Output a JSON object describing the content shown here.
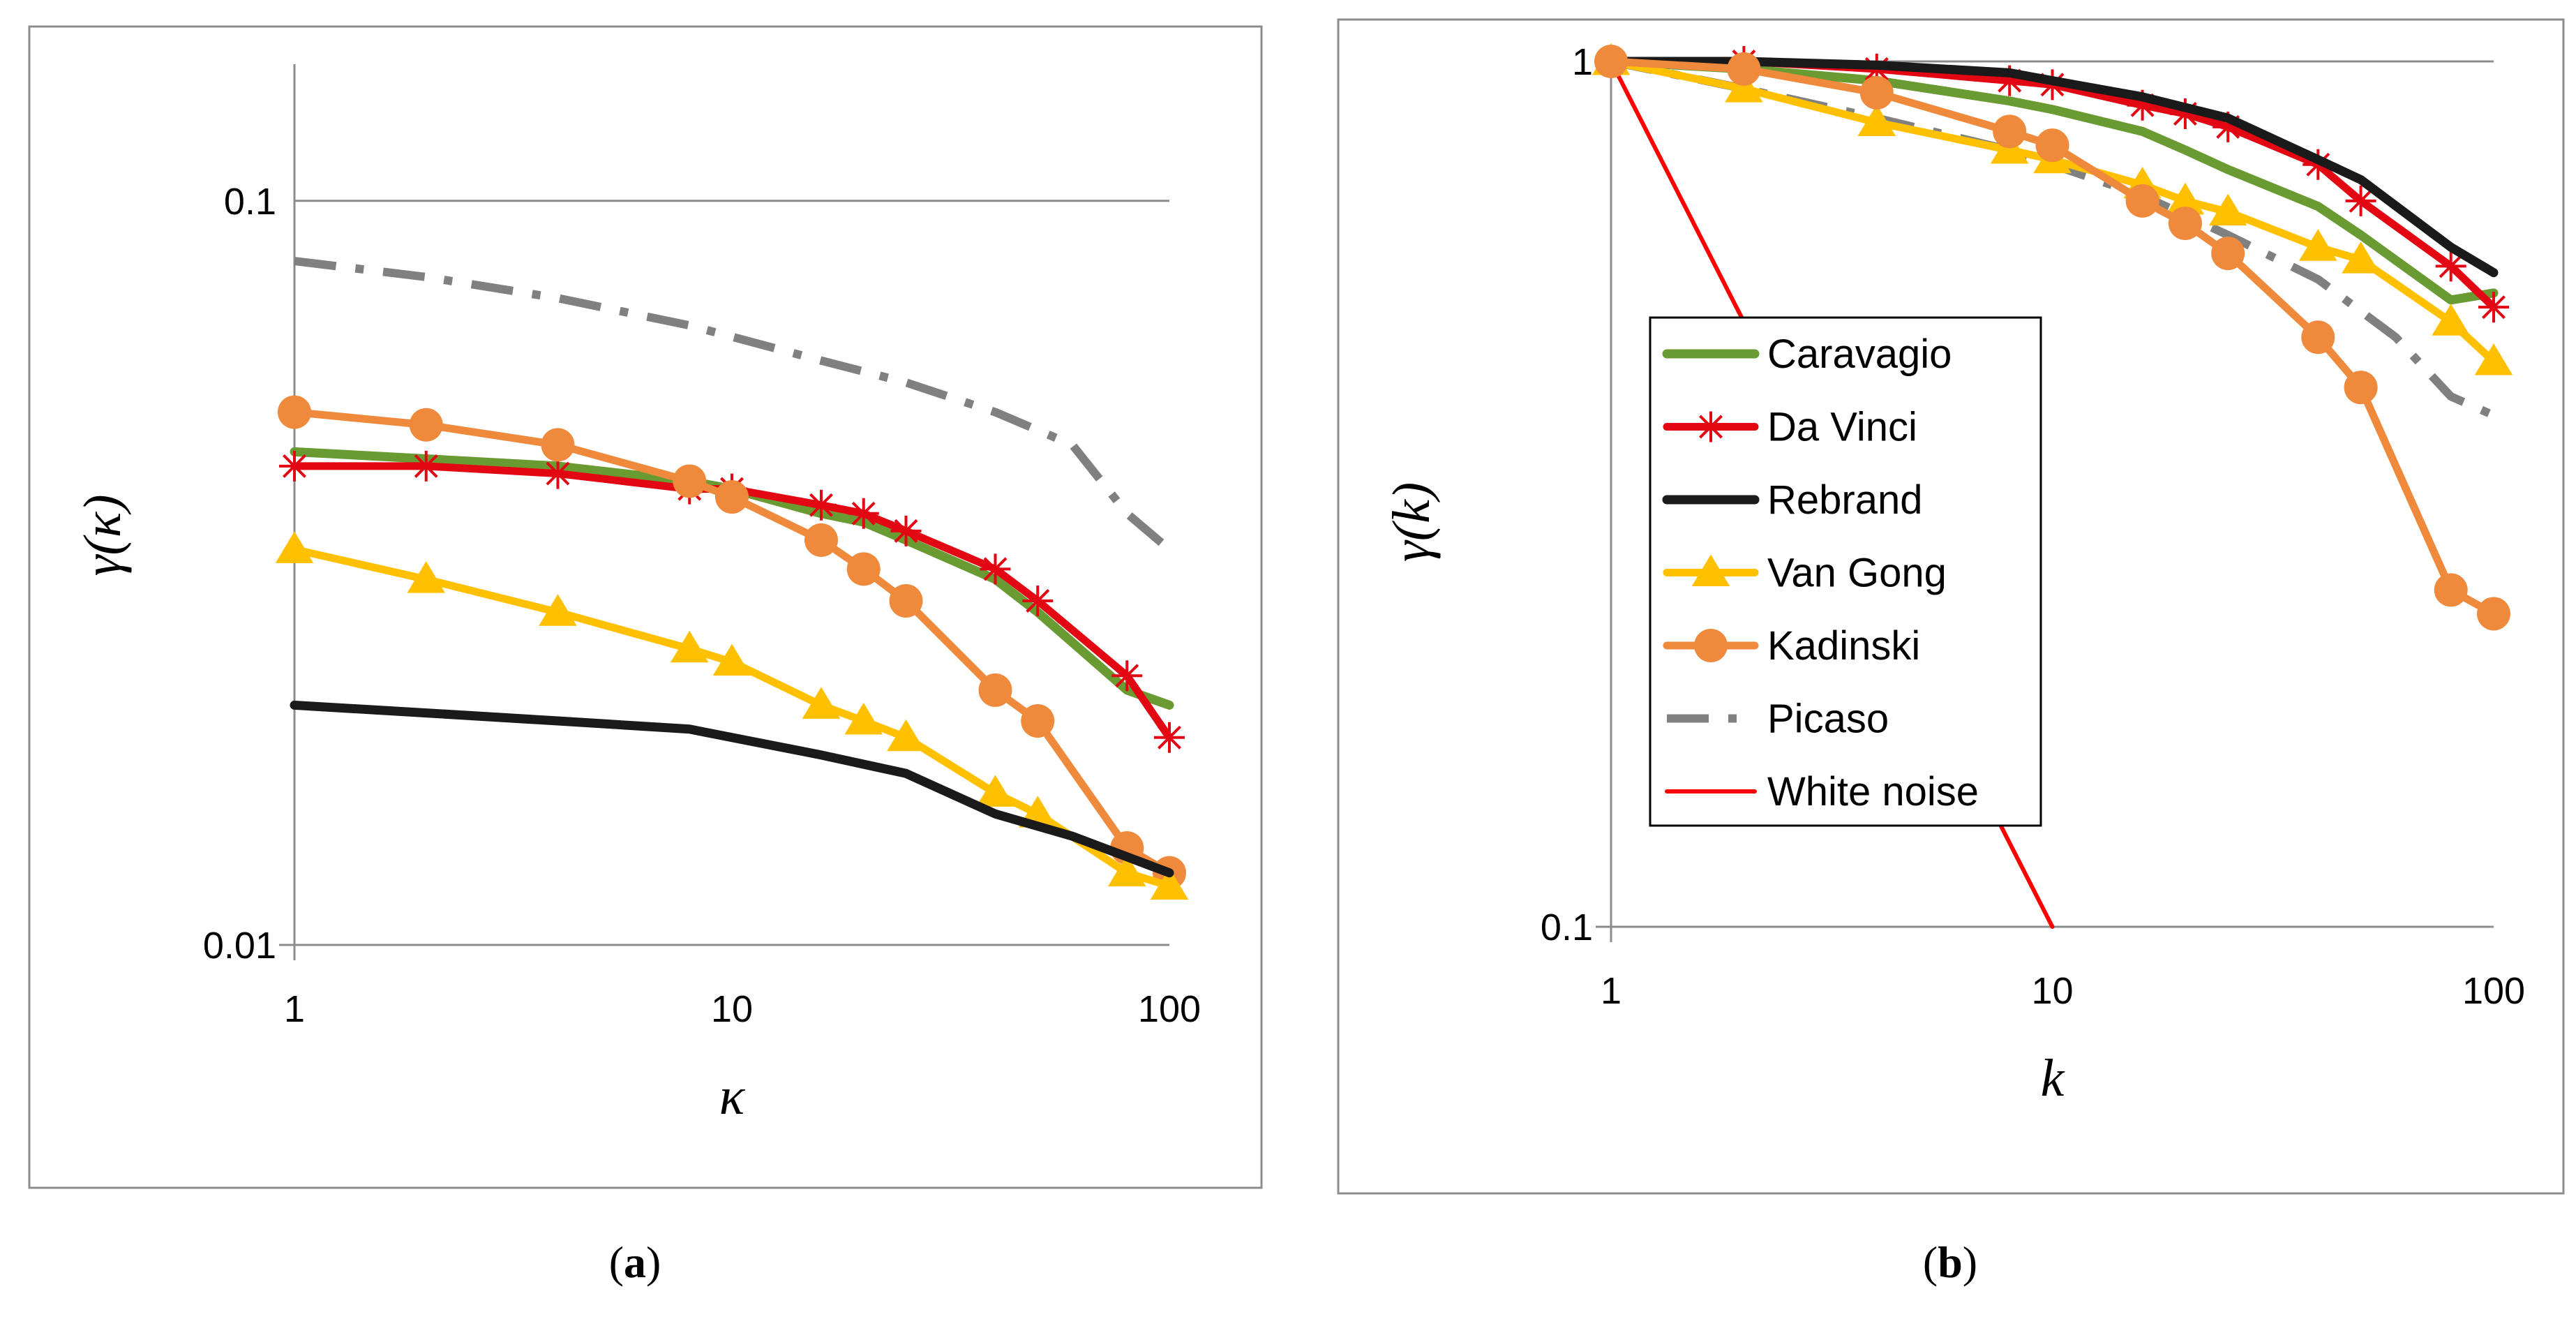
{
  "chart_data": [
    {
      "type": "line",
      "panel_label": "a",
      "xscale": "log",
      "yscale": "log",
      "xlim": [
        1,
        100
      ],
      "ylim": [
        0.01,
        0.15
      ],
      "xticks": [
        1,
        10,
        100
      ],
      "xtick_labels": [
        "1",
        "10",
        "100"
      ],
      "yticks": [
        0.01,
        0.1
      ],
      "ytick_labels": [
        "0.01",
        "0.1"
      ],
      "xlabel": "κ",
      "ylabel": "γ(κ)",
      "grid": "horizontal",
      "series": [
        {
          "name": "Picaso",
          "style": "dashdot",
          "color": "#808080",
          "x": [
            1,
            2,
            4,
            8,
            16,
            25,
            40,
            60,
            80,
            100
          ],
          "y": [
            0.083,
            0.079,
            0.074,
            0.068,
            0.061,
            0.057,
            0.052,
            0.047,
            0.038,
            0.034
          ]
        },
        {
          "name": "Caravagio",
          "style": "line",
          "color": "#6a9a32",
          "x": [
            1,
            2,
            4,
            8,
            10,
            16,
            20,
            25,
            40,
            50,
            80,
            100
          ],
          "y": [
            0.046,
            0.045,
            0.044,
            0.042,
            0.041,
            0.038,
            0.037,
            0.035,
            0.031,
            0.028,
            0.022,
            0.021
          ]
        },
        {
          "name": "Da Vinci",
          "style": "star",
          "color": "#e30613",
          "x": [
            1,
            2,
            4,
            8,
            10,
            16,
            20,
            25,
            40,
            50,
            80,
            100
          ],
          "y": [
            0.044,
            0.044,
            0.043,
            0.041,
            0.041,
            0.039,
            0.038,
            0.036,
            0.032,
            0.029,
            0.023,
            0.019
          ]
        },
        {
          "name": "Kadinski",
          "style": "circle",
          "color": "#ef8a3c",
          "x": [
            1,
            2,
            4,
            8,
            10,
            16,
            20,
            25,
            40,
            50,
            80,
            100
          ],
          "y": [
            0.052,
            0.05,
            0.047,
            0.042,
            0.04,
            0.035,
            0.032,
            0.029,
            0.022,
            0.02,
            0.0135,
            0.0125
          ]
        },
        {
          "name": "Van Gong",
          "style": "triangle",
          "color": "#ffc000",
          "x": [
            1,
            2,
            4,
            8,
            10,
            16,
            20,
            25,
            40,
            50,
            80,
            100
          ],
          "y": [
            0.034,
            0.031,
            0.028,
            0.025,
            0.024,
            0.021,
            0.02,
            0.019,
            0.016,
            0.015,
            0.0125,
            0.012
          ]
        },
        {
          "name": "Rebrand",
          "style": "line",
          "color": "#1a1a1a",
          "x": [
            1,
            2,
            4,
            8,
            10,
            16,
            25,
            40,
            60,
            100
          ],
          "y": [
            0.021,
            0.0205,
            0.02,
            0.0195,
            0.019,
            0.018,
            0.017,
            0.015,
            0.014,
            0.0125
          ]
        }
      ]
    },
    {
      "type": "line",
      "panel_label": "b",
      "xscale": "log",
      "yscale": "log",
      "xlim": [
        1,
        100
      ],
      "ylim": [
        0.1,
        1
      ],
      "xticks": [
        1,
        10,
        100
      ],
      "xtick_labels": [
        "1",
        "10",
        "100"
      ],
      "yticks": [
        0.1,
        1
      ],
      "ytick_labels": [
        "0.1",
        "1"
      ],
      "xlabel": "k",
      "ylabel": "γ(k)",
      "grid": "horizontal",
      "legend": {
        "position": "center-left",
        "entries": [
          "Caravagio",
          "Da Vinci",
          "Rebrand",
          "Van Gong",
          "Kadinski",
          "Picaso",
          "White noise"
        ]
      },
      "series": [
        {
          "name": "White noise",
          "style": "thin",
          "color": "#ff0000",
          "x": [
            1,
            10
          ],
          "y": [
            1,
            0.1
          ]
        },
        {
          "name": "Picaso",
          "style": "dashdot",
          "color": "#808080",
          "x": [
            1,
            2,
            4,
            8,
            16,
            25,
            40,
            60,
            80,
            100
          ],
          "y": [
            1,
            0.93,
            0.86,
            0.79,
            0.7,
            0.63,
            0.56,
            0.48,
            0.41,
            0.39
          ]
        },
        {
          "name": "Caravagio",
          "style": "line",
          "color": "#6a9a32",
          "x": [
            1,
            2,
            4,
            8,
            10,
            16,
            20,
            25,
            40,
            50,
            80,
            100
          ],
          "y": [
            1,
            0.98,
            0.95,
            0.9,
            0.88,
            0.83,
            0.79,
            0.75,
            0.68,
            0.63,
            0.53,
            0.54
          ]
        },
        {
          "name": "Da Vinci",
          "style": "star",
          "color": "#e30613",
          "x": [
            1,
            2,
            4,
            8,
            10,
            16,
            20,
            25,
            40,
            50,
            80,
            100
          ],
          "y": [
            1,
            1,
            0.98,
            0.95,
            0.94,
            0.89,
            0.87,
            0.84,
            0.76,
            0.69,
            0.58,
            0.52
          ]
        },
        {
          "name": "Rebrand",
          "style": "line",
          "color": "#1a1a1a",
          "x": [
            1,
            2,
            4,
            8,
            10,
            16,
            25,
            40,
            50,
            80,
            100
          ],
          "y": [
            1,
            1,
            0.99,
            0.97,
            0.95,
            0.91,
            0.86,
            0.77,
            0.73,
            0.61,
            0.57
          ]
        },
        {
          "name": "Van Gong",
          "style": "triangle",
          "color": "#ffc000",
          "x": [
            1,
            2,
            4,
            8,
            10,
            16,
            20,
            25,
            40,
            50,
            80,
            100
          ],
          "y": [
            1,
            0.93,
            0.85,
            0.79,
            0.77,
            0.72,
            0.69,
            0.67,
            0.61,
            0.59,
            0.5,
            0.45
          ]
        },
        {
          "name": "Kadinski",
          "style": "circle",
          "color": "#ef8a3c",
          "x": [
            1,
            2,
            4,
            8,
            10,
            16,
            20,
            25,
            40,
            50,
            80,
            100
          ],
          "y": [
            1,
            0.98,
            0.92,
            0.83,
            0.8,
            0.69,
            0.65,
            0.6,
            0.48,
            0.42,
            0.245,
            0.23
          ]
        }
      ]
    }
  ],
  "captions": [
    "(a)",
    "(b)"
  ]
}
